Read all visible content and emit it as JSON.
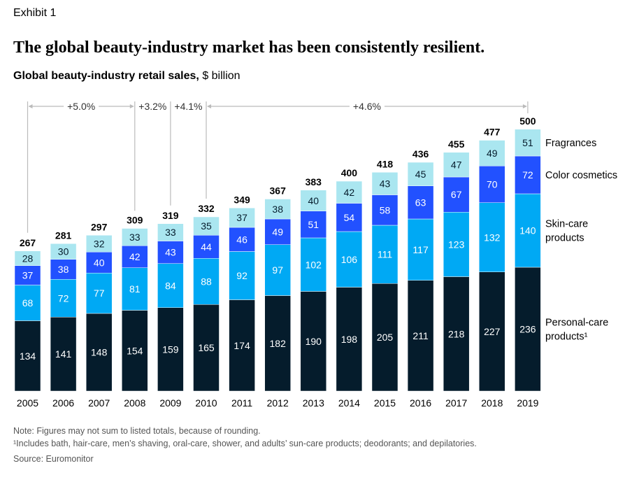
{
  "exhibit": "Exhibit 1",
  "title": "The global beauty-industry market has been consistently resilient.",
  "subtitle_bold": "Global beauty-industry retail sales,",
  "subtitle_unit": "$ billion",
  "colors": {
    "personal": "#051c2c",
    "skin": "#00a9f4",
    "color": "#2251ff",
    "frag": "#aae6f0"
  },
  "chart_data": {
    "type": "bar",
    "stacked": true,
    "categories": [
      "2005",
      "2006",
      "2007",
      "2008",
      "2009",
      "2010",
      "2011",
      "2012",
      "2013",
      "2014",
      "2015",
      "2016",
      "2017",
      "2018",
      "2019"
    ],
    "series": [
      {
        "name": "Personal-care products¹",
        "key": "personal",
        "values": [
          134,
          141,
          148,
          154,
          159,
          165,
          174,
          182,
          190,
          198,
          205,
          211,
          218,
          227,
          236
        ]
      },
      {
        "name": "Skin-care products",
        "key": "skin",
        "values": [
          68,
          72,
          77,
          81,
          84,
          88,
          92,
          97,
          102,
          106,
          111,
          117,
          123,
          132,
          140
        ]
      },
      {
        "name": "Color cosmetics",
        "key": "color",
        "values": [
          37,
          38,
          40,
          42,
          43,
          44,
          46,
          49,
          51,
          54,
          58,
          63,
          67,
          70,
          72
        ]
      },
      {
        "name": "Fragrances",
        "key": "frag",
        "values": [
          28,
          30,
          32,
          33,
          33,
          35,
          37,
          38,
          40,
          42,
          43,
          45,
          47,
          49,
          51
        ]
      }
    ],
    "totals": [
      267,
      281,
      297,
      309,
      319,
      332,
      349,
      367,
      383,
      400,
      418,
      436,
      455,
      477,
      500
    ],
    "growth_annotations": [
      {
        "label": "+5.0%",
        "from": "2005",
        "to": "2008"
      },
      {
        "label": "+3.2%",
        "from": "2008",
        "to": "2009"
      },
      {
        "label": "+4.1%",
        "from": "2009",
        "to": "2010"
      },
      {
        "label": "+4.6%",
        "from": "2010",
        "to": "2019"
      }
    ],
    "legend": [
      [
        "Fragrances"
      ],
      [
        "Color cosmetics"
      ],
      [
        "Skin-care",
        "products"
      ],
      [
        "Personal-care",
        "products¹"
      ]
    ],
    "legend_placement": "right",
    "ylim": [
      0,
      500
    ],
    "grid": false
  },
  "notes": {
    "note": "Note: Figures may not sum to listed totals, because of rounding.",
    "footnote": "¹Includes bath, hair-care, men’s shaving, oral-care, shower, and adults’ sun-care products; deodorants; and depilatories.",
    "source": "Source: Euromonitor"
  }
}
